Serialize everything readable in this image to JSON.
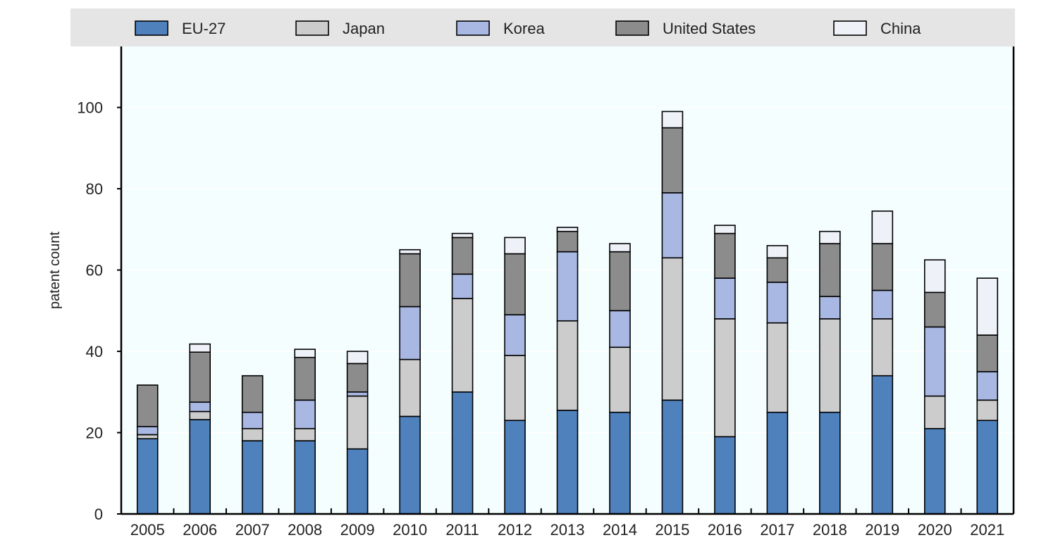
{
  "chart_data": {
    "type": "bar",
    "stacked": true,
    "title": "",
    "xlabel": "",
    "ylabel": "patent count",
    "ylim": [
      0,
      115
    ],
    "yticks": [
      0,
      20,
      40,
      60,
      80,
      100
    ],
    "grid": true,
    "legend_position": "top",
    "categories": [
      "2005",
      "2006",
      "2007",
      "2008",
      "2009",
      "2010",
      "2011",
      "2012",
      "2013",
      "2014",
      "2015",
      "2016",
      "2017",
      "2018",
      "2019",
      "2020",
      "2021"
    ],
    "series": [
      {
        "name": "EU-27",
        "color": "#4f81bd",
        "values": [
          18.5,
          23.2,
          18,
          18,
          16,
          24,
          30,
          23,
          25.5,
          25,
          28,
          19,
          25,
          25,
          34,
          21,
          23
        ]
      },
      {
        "name": "Japan",
        "color": "#cccccc",
        "values": [
          1,
          2,
          3,
          3,
          13,
          14,
          23,
          16,
          22,
          16,
          35,
          29,
          22,
          23,
          14,
          8,
          5
        ]
      },
      {
        "name": "Korea",
        "color": "#a9b8e3",
        "values": [
          2,
          2.3,
          4,
          7,
          1,
          13,
          6,
          10,
          17,
          9,
          16,
          10,
          10,
          5.5,
          7,
          17,
          7
        ]
      },
      {
        "name": "United States",
        "color": "#8c8c8c",
        "values": [
          10.2,
          12.3,
          9,
          10.5,
          7,
          13,
          9,
          15,
          5,
          14.5,
          16,
          11,
          6,
          13,
          11.5,
          8.5,
          9
        ]
      },
      {
        "name": "China",
        "color": "#eef1f8",
        "values": [
          0,
          2,
          0,
          2,
          3,
          1,
          1,
          4,
          1,
          2,
          4,
          2,
          3,
          3,
          8,
          8,
          14
        ]
      }
    ]
  },
  "colors": {
    "plot_background": "#f4feff",
    "legend_background": "#e5e5e5",
    "axis": "#000000",
    "grid": "#ffffff"
  }
}
